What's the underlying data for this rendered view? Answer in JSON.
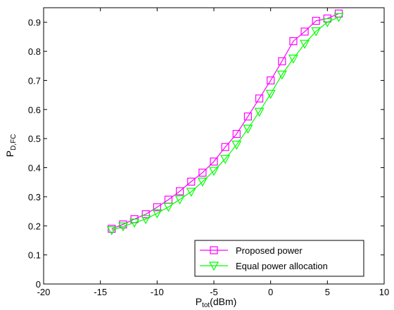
{
  "chart_data": {
    "type": "line",
    "xlabel": {
      "main": "P",
      "sub": "tot",
      "suffix": "(dBm)"
    },
    "ylabel": {
      "main": "P",
      "sub": "D,FC"
    },
    "xlim": [
      -20,
      10
    ],
    "ylim": [
      0,
      0.95
    ],
    "xticks": [
      -20,
      -15,
      -10,
      -5,
      0,
      5,
      10
    ],
    "yticks": [
      0,
      0.1,
      0.2,
      0.3,
      0.4,
      0.5,
      0.6,
      0.7,
      0.8,
      0.9
    ],
    "xtick_labels": [
      "-20",
      "-15",
      "-10",
      "-5",
      "0",
      "5",
      "10"
    ],
    "ytick_labels": [
      "0",
      "0.1",
      "0.2",
      "0.3",
      "0.4",
      "0.5",
      "0.6",
      "0.7",
      "0.8",
      "0.9"
    ],
    "grid": false,
    "legend_position": "bottom-right",
    "x": [
      -14,
      -13,
      -12,
      -11,
      -10,
      -9,
      -8,
      -7,
      -6,
      -5,
      -4,
      -3,
      -2,
      -1,
      0,
      1,
      2,
      3,
      4,
      5,
      6
    ],
    "series": [
      {
        "name": "Proposed power",
        "color": "#ff00ff",
        "marker": "square",
        "values": [
          0.19,
          0.205,
          0.223,
          0.24,
          0.264,
          0.29,
          0.319,
          0.352,
          0.383,
          0.421,
          0.471,
          0.516,
          0.576,
          0.638,
          0.7,
          0.766,
          0.835,
          0.868,
          0.905,
          0.913,
          0.93
        ]
      },
      {
        "name": "Equal power allocation",
        "color": "#00ff00",
        "marker": "triangle-down",
        "values": [
          0.185,
          0.198,
          0.211,
          0.223,
          0.243,
          0.265,
          0.291,
          0.317,
          0.352,
          0.389,
          0.43,
          0.479,
          0.534,
          0.592,
          0.654,
          0.72,
          0.775,
          0.826,
          0.869,
          0.9,
          0.918
        ]
      }
    ]
  }
}
